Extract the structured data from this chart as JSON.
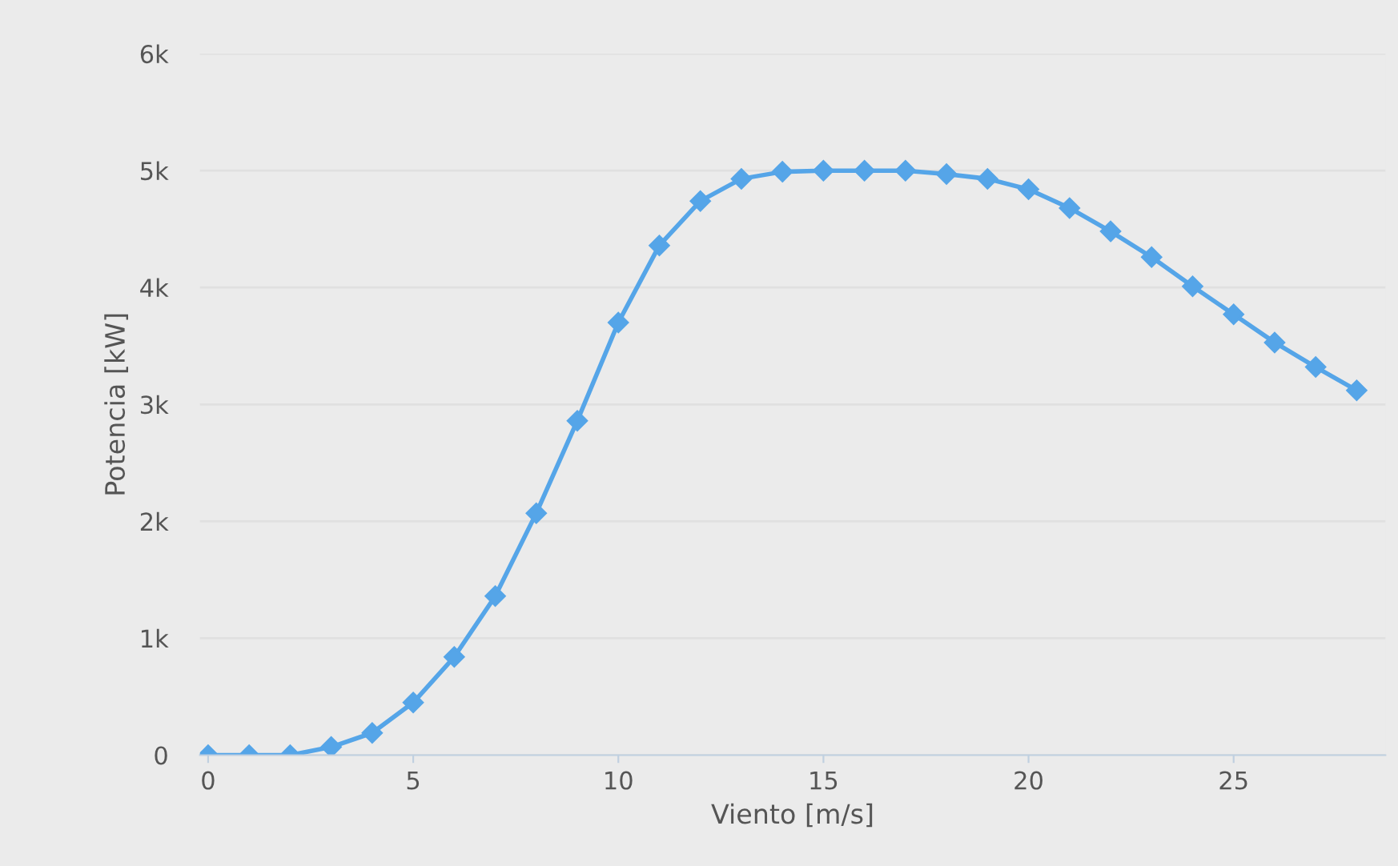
{
  "chart_data": {
    "type": "line",
    "xlabel": "Viento [m/s]",
    "ylabel": "Potencia [kW]",
    "x": [
      0,
      1,
      2,
      3,
      4,
      5,
      6,
      7,
      8,
      9,
      10,
      11,
      12,
      13,
      14,
      15,
      16,
      17,
      18,
      19,
      20,
      21,
      22,
      23,
      24,
      25,
      26,
      27,
      28
    ],
    "series": [
      {
        "color": "#55a5e8",
        "values": [
          0,
          0,
          0,
          70,
          190,
          450,
          840,
          1360,
          2070,
          2860,
          3700,
          4360,
          4740,
          4930,
          4990,
          5000,
          5000,
          5000,
          4970,
          4930,
          4840,
          4680,
          4480,
          4260,
          4010,
          3770,
          3530,
          3320,
          3120
        ]
      }
    ],
    "xlim": [
      -0.2,
      28.7
    ],
    "ylim": [
      0,
      6000
    ],
    "xticks": [
      0,
      5,
      10,
      15,
      20,
      25
    ],
    "yticks": [
      {
        "value": 0,
        "label": "0"
      },
      {
        "value": 1000,
        "label": "1k"
      },
      {
        "value": 2000,
        "label": "2k"
      },
      {
        "value": 3000,
        "label": "3k"
      },
      {
        "value": 4000,
        "label": "4k"
      },
      {
        "value": 5000,
        "label": "5k"
      },
      {
        "value": 6000,
        "label": "6k"
      }
    ],
    "grid": "y",
    "marker": "diamond",
    "line_style": "solid"
  }
}
